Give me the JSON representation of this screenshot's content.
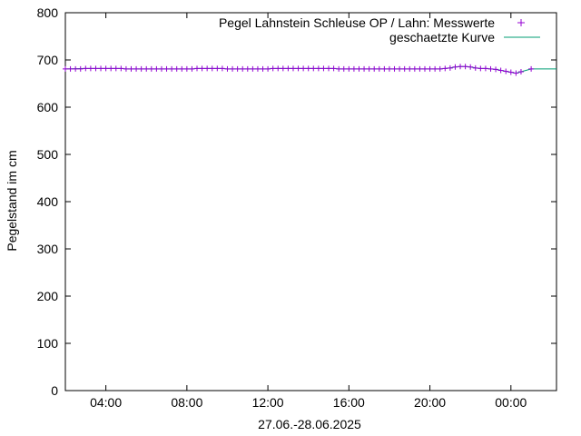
{
  "chart_data": {
    "type": "line",
    "title": "",
    "xlabel": "27.06.-28.06.2025",
    "ylabel": "Pegelstand im cm",
    "x_unit": "hours since 27.06.2025 00:00",
    "xlim": [
      2.0,
      26.25
    ],
    "ylim": [
      0,
      800
    ],
    "x_ticks": [
      {
        "value": 4,
        "label": "04:00"
      },
      {
        "value": 8,
        "label": "08:00"
      },
      {
        "value": 12,
        "label": "12:00"
      },
      {
        "value": 16,
        "label": "16:00"
      },
      {
        "value": 20,
        "label": "20:00"
      },
      {
        "value": 24,
        "label": "00:00"
      }
    ],
    "y_ticks": [
      0,
      100,
      200,
      300,
      400,
      500,
      600,
      700,
      800
    ],
    "grid": false,
    "legend_position": "top-right",
    "series": [
      {
        "name": "Pegel Lahnstein Schleuse OP / Lahn: Messwerte",
        "style": "points",
        "marker": "+",
        "color": "#9400d3",
        "points": [
          [
            2.0,
            681
          ],
          [
            2.25,
            681
          ],
          [
            2.5,
            681
          ],
          [
            2.75,
            681
          ],
          [
            3.0,
            682
          ],
          [
            3.25,
            682
          ],
          [
            3.5,
            682
          ],
          [
            3.75,
            682
          ],
          [
            4.0,
            682
          ],
          [
            4.25,
            682
          ],
          [
            4.5,
            682
          ],
          [
            4.75,
            682
          ],
          [
            5.0,
            681
          ],
          [
            5.25,
            681
          ],
          [
            5.5,
            681
          ],
          [
            5.75,
            681
          ],
          [
            6.0,
            681
          ],
          [
            6.25,
            681
          ],
          [
            6.5,
            681
          ],
          [
            6.75,
            681
          ],
          [
            7.0,
            681
          ],
          [
            7.25,
            681
          ],
          [
            7.5,
            681
          ],
          [
            7.75,
            681
          ],
          [
            8.0,
            681
          ],
          [
            8.25,
            681
          ],
          [
            8.5,
            682
          ],
          [
            8.75,
            682
          ],
          [
            9.0,
            682
          ],
          [
            9.25,
            682
          ],
          [
            9.5,
            682
          ],
          [
            9.75,
            682
          ],
          [
            10.0,
            681
          ],
          [
            10.25,
            681
          ],
          [
            10.5,
            681
          ],
          [
            10.75,
            681
          ],
          [
            11.0,
            681
          ],
          [
            11.25,
            681
          ],
          [
            11.5,
            681
          ],
          [
            11.75,
            681
          ],
          [
            12.0,
            681
          ],
          [
            12.25,
            682
          ],
          [
            12.5,
            682
          ],
          [
            12.75,
            682
          ],
          [
            13.0,
            682
          ],
          [
            13.25,
            682
          ],
          [
            13.5,
            682
          ],
          [
            13.75,
            682
          ],
          [
            14.0,
            682
          ],
          [
            14.25,
            682
          ],
          [
            14.5,
            682
          ],
          [
            14.75,
            682
          ],
          [
            15.0,
            682
          ],
          [
            15.25,
            682
          ],
          [
            15.5,
            681
          ],
          [
            15.75,
            681
          ],
          [
            16.0,
            681
          ],
          [
            16.25,
            681
          ],
          [
            16.5,
            681
          ],
          [
            16.75,
            681
          ],
          [
            17.0,
            681
          ],
          [
            17.25,
            681
          ],
          [
            17.5,
            681
          ],
          [
            17.75,
            681
          ],
          [
            18.0,
            681
          ],
          [
            18.25,
            681
          ],
          [
            18.5,
            681
          ],
          [
            18.75,
            681
          ],
          [
            19.0,
            681
          ],
          [
            19.25,
            681
          ],
          [
            19.5,
            681
          ],
          [
            19.75,
            681
          ],
          [
            20.0,
            681
          ],
          [
            20.25,
            681
          ],
          [
            20.5,
            681
          ],
          [
            20.75,
            682
          ],
          [
            21.0,
            683
          ],
          [
            21.25,
            685
          ],
          [
            21.5,
            686
          ],
          [
            21.75,
            686
          ],
          [
            22.0,
            685
          ],
          [
            22.25,
            683
          ],
          [
            22.5,
            682
          ],
          [
            22.75,
            682
          ],
          [
            23.0,
            681
          ],
          [
            23.25,
            680
          ],
          [
            23.5,
            678
          ],
          [
            23.75,
            676
          ],
          [
            24.0,
            674
          ],
          [
            24.25,
            672
          ],
          [
            24.5,
            675
          ],
          [
            25.0,
            681
          ]
        ]
      },
      {
        "name": "geschaetzte Kurve",
        "style": "line",
        "color": "#009e73",
        "points": [
          [
            2.0,
            681
          ],
          [
            3.0,
            682
          ],
          [
            4.75,
            682
          ],
          [
            5.0,
            681
          ],
          [
            8.25,
            681
          ],
          [
            8.5,
            682
          ],
          [
            9.75,
            682
          ],
          [
            10.0,
            681
          ],
          [
            12.0,
            681
          ],
          [
            12.25,
            682
          ],
          [
            15.25,
            682
          ],
          [
            15.5,
            681
          ],
          [
            20.5,
            681
          ],
          [
            20.75,
            682
          ],
          [
            21.0,
            683
          ],
          [
            21.25,
            685
          ],
          [
            21.5,
            686
          ],
          [
            21.75,
            686
          ],
          [
            22.0,
            685
          ],
          [
            22.25,
            683
          ],
          [
            22.5,
            682
          ],
          [
            22.75,
            682
          ],
          [
            23.0,
            681
          ],
          [
            23.25,
            680
          ],
          [
            23.5,
            678
          ],
          [
            23.75,
            676
          ],
          [
            24.0,
            674
          ],
          [
            24.25,
            672
          ],
          [
            24.5,
            675
          ],
          [
            25.0,
            681
          ],
          [
            26.25,
            681
          ]
        ]
      }
    ]
  }
}
